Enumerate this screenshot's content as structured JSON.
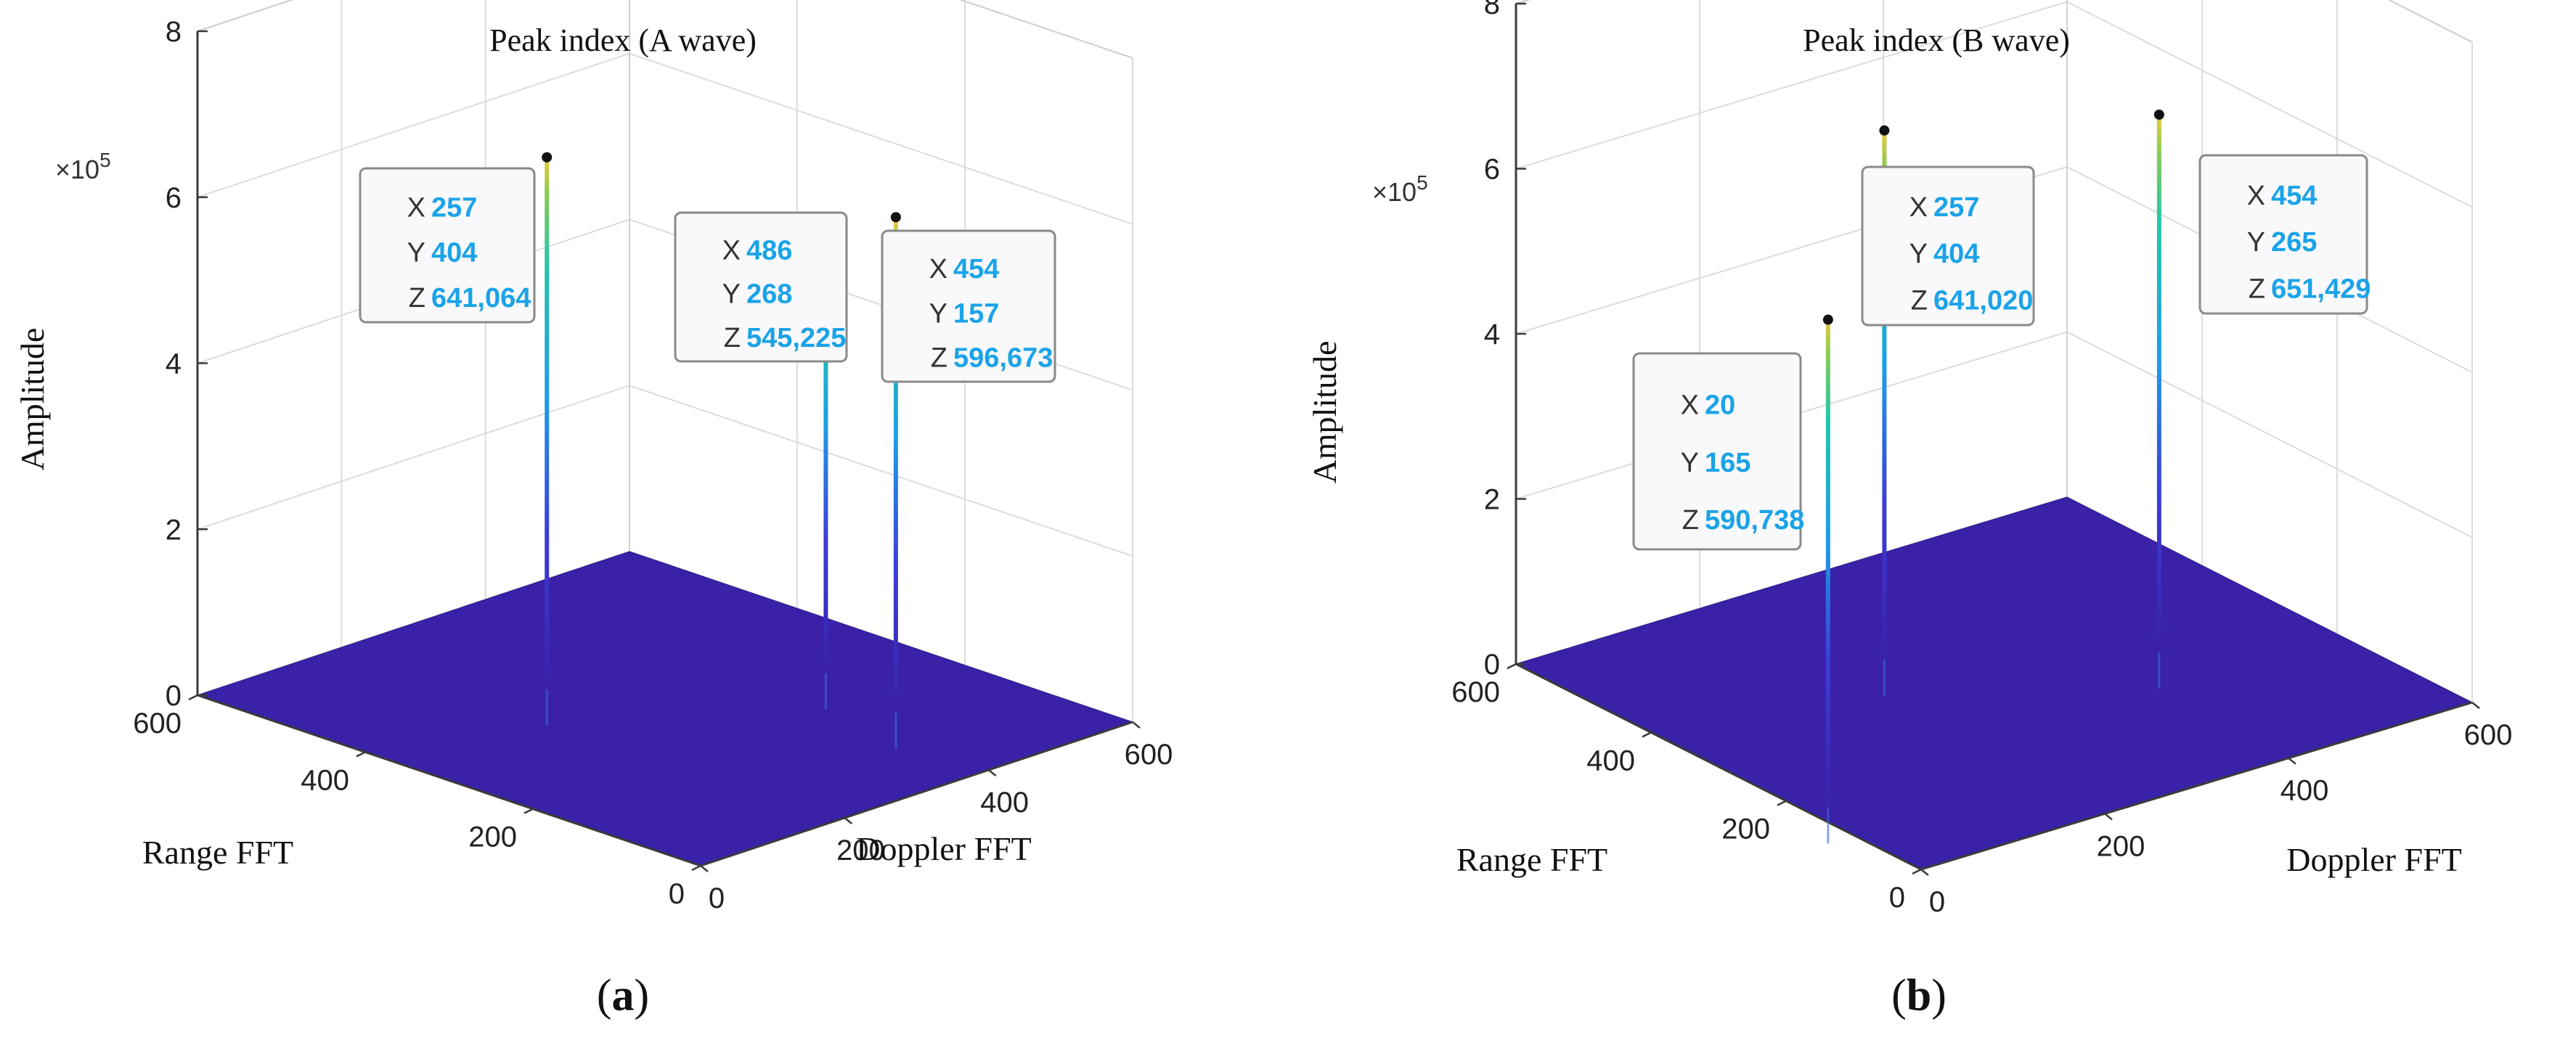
{
  "chart_data": [
    {
      "type": "surface3d",
      "title": "Peak index (A wave)",
      "caption_letter": "a",
      "zlabel": "Amplitude",
      "xlabel": "Doppler FFT",
      "ylabel": "Range FFT",
      "exponent_base": "×10",
      "exponent_power": "5",
      "zticks": [
        "0",
        "2",
        "4",
        "6",
        "8"
      ],
      "xticks": [
        "0",
        "200",
        "400",
        "600"
      ],
      "yticks": [
        "0",
        "200",
        "400",
        "600"
      ],
      "xlim": [
        0,
        600
      ],
      "ylim": [
        0,
        600
      ],
      "zlim": [
        0,
        8
      ],
      "surface_color": "#3a21a8",
      "peaks": [
        {
          "x": 257,
          "y": 404,
          "z": 641064,
          "x_label": "257",
          "y_label": "404",
          "z_label": "641,064"
        },
        {
          "x": 486,
          "y": 268,
          "z": 545225,
          "x_label": "486",
          "y_label": "268",
          "z_label": "545,225"
        },
        {
          "x": 454,
          "y": 157,
          "z": 596673,
          "x_label": "454",
          "y_label": "157",
          "z_label": "596,673"
        }
      ]
    },
    {
      "type": "surface3d",
      "title": "Peak index (B wave)",
      "caption_letter": "b",
      "zlabel": "Amplitude",
      "xlabel": "Doppler FFT",
      "ylabel": "Range FFT",
      "exponent_base": "×10",
      "exponent_power": "5",
      "zticks": [
        "0",
        "2",
        "4",
        "6",
        "8"
      ],
      "xticks": [
        "0",
        "200",
        "400",
        "600"
      ],
      "yticks": [
        "0",
        "200",
        "400",
        "600"
      ],
      "xlim": [
        0,
        600
      ],
      "ylim": [
        0,
        600
      ],
      "zlim": [
        0,
        8
      ],
      "surface_color": "#3a21a8",
      "peaks": [
        {
          "x": 20,
          "y": 165,
          "z": 590738,
          "x_label": "20",
          "y_label": "165",
          "z_label": "590,738"
        },
        {
          "x": 257,
          "y": 404,
          "z": 641020,
          "x_label": "257",
          "y_label": "404",
          "z_label": "641,020"
        },
        {
          "x": 454,
          "y": 265,
          "z": 651429,
          "x_label": "454",
          "y_label": "265",
          "z_label": "651,429"
        }
      ]
    }
  ]
}
